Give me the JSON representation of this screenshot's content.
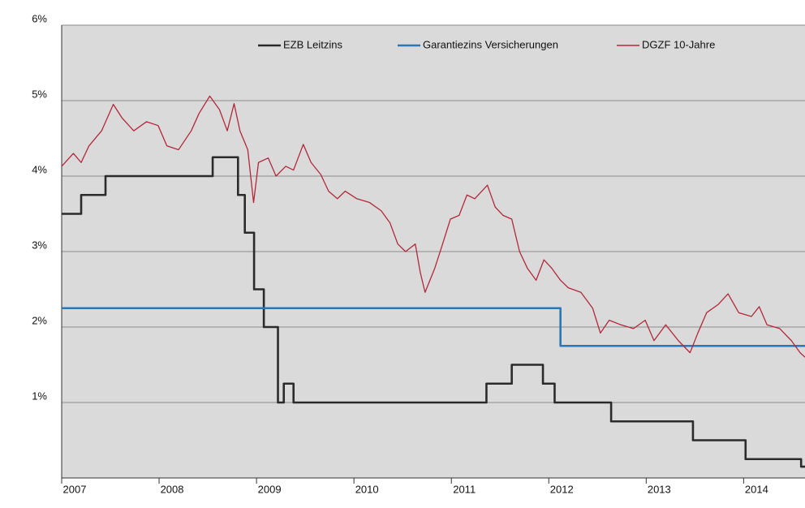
{
  "chart_data": {
    "type": "line",
    "xlim": [
      2007,
      2014.63
    ],
    "xticks": [
      2007,
      2008,
      2009,
      2010,
      2011,
      2012,
      2013,
      2014
    ],
    "ylim": [
      0,
      6
    ],
    "yticks": [
      {
        "value": 1,
        "label": "1%"
      },
      {
        "value": 2,
        "label": "2%"
      },
      {
        "value": 3,
        "label": "3%"
      },
      {
        "value": 4,
        "label": "4%"
      },
      {
        "value": 5,
        "label": "5%"
      },
      {
        "value": 6,
        "label": "6%"
      }
    ],
    "grid": true,
    "legend": "top",
    "series": [
      {
        "name": "EZB Leitzins",
        "color": "#2b2b2b",
        "x": [
          2007.0,
          2007.2,
          2007.2,
          2007.45,
          2007.45,
          2008.55,
          2008.55,
          2008.81,
          2008.81,
          2008.88,
          2008.88,
          2008.975,
          2008.975,
          2009.075,
          2009.075,
          2009.22,
          2009.22,
          2009.28,
          2009.28,
          2009.38,
          2009.38,
          2011.36,
          2011.36,
          2011.62,
          2011.62,
          2011.94,
          2011.94,
          2012.06,
          2012.06,
          2012.64,
          2012.64,
          2013.48,
          2013.48,
          2014.02,
          2014.02,
          2014.59,
          2014.59,
          2014.63
        ],
        "values": [
          3.5,
          3.5,
          3.75,
          3.75,
          4.0,
          4.0,
          4.25,
          4.25,
          3.75,
          3.75,
          3.25,
          3.25,
          2.5,
          2.5,
          2.0,
          2.0,
          1.0,
          1.0,
          1.25,
          1.25,
          1.0,
          1.0,
          1.25,
          1.25,
          1.5,
          1.5,
          1.25,
          1.25,
          1.0,
          1.0,
          0.75,
          0.75,
          0.5,
          0.5,
          0.25,
          0.25,
          0.15,
          0.15
        ]
      },
      {
        "name": "Garantiezins Versicherungen",
        "color": "#2e75b6",
        "x": [
          2007.0,
          2012.12,
          2012.12,
          2014.63
        ],
        "values": [
          2.25,
          2.25,
          1.75,
          1.75
        ]
      },
      {
        "name": "DGZF 10-Jahre",
        "color": "#b2283a",
        "x": [
          2007.0,
          2007.12,
          2007.2,
          2007.28,
          2007.41,
          2007.53,
          2007.62,
          2007.74,
          2007.87,
          2007.99,
          2008.08,
          2008.2,
          2008.33,
          2008.41,
          2008.52,
          2008.62,
          2008.7,
          2008.77,
          2008.83,
          2008.91,
          2008.97,
          2009.02,
          2009.12,
          2009.2,
          2009.3,
          2009.38,
          2009.48,
          2009.56,
          2009.66,
          2009.74,
          2009.83,
          2009.91,
          2010.03,
          2010.16,
          2010.28,
          2010.37,
          2010.45,
          2010.53,
          2010.63,
          2010.68,
          2010.73,
          2010.83,
          2010.91,
          2010.99,
          2011.08,
          2011.16,
          2011.24,
          2011.37,
          2011.45,
          2011.53,
          2011.62,
          2011.7,
          2011.78,
          2011.87,
          2011.95,
          2012.03,
          2012.12,
          2012.2,
          2012.33,
          2012.45,
          2012.53,
          2012.62,
          2012.74,
          2012.87,
          2012.99,
          2013.08,
          2013.2,
          2013.33,
          2013.45,
          2013.53,
          2013.62,
          2013.74,
          2013.84,
          2013.95,
          2014.08,
          2014.16,
          2014.24,
          2014.37,
          2014.49,
          2014.58,
          2014.63
        ],
        "values": [
          4.13,
          4.3,
          4.18,
          4.4,
          4.6,
          4.95,
          4.77,
          4.6,
          4.72,
          4.67,
          4.4,
          4.35,
          4.6,
          4.83,
          5.06,
          4.88,
          4.6,
          4.96,
          4.6,
          4.35,
          3.65,
          4.18,
          4.24,
          4.0,
          4.13,
          4.08,
          4.42,
          4.18,
          4.02,
          3.8,
          3.7,
          3.8,
          3.7,
          3.65,
          3.54,
          3.38,
          3.1,
          3.0,
          3.1,
          2.73,
          2.46,
          2.78,
          3.1,
          3.43,
          3.48,
          3.75,
          3.7,
          3.88,
          3.59,
          3.48,
          3.43,
          3.0,
          2.78,
          2.62,
          2.89,
          2.78,
          2.62,
          2.52,
          2.46,
          2.25,
          1.92,
          2.09,
          2.03,
          1.98,
          2.09,
          1.82,
          2.03,
          1.82,
          1.66,
          1.92,
          2.19,
          2.3,
          2.44,
          2.19,
          2.14,
          2.27,
          2.03,
          1.98,
          1.82,
          1.66,
          1.6
        ]
      }
    ]
  }
}
